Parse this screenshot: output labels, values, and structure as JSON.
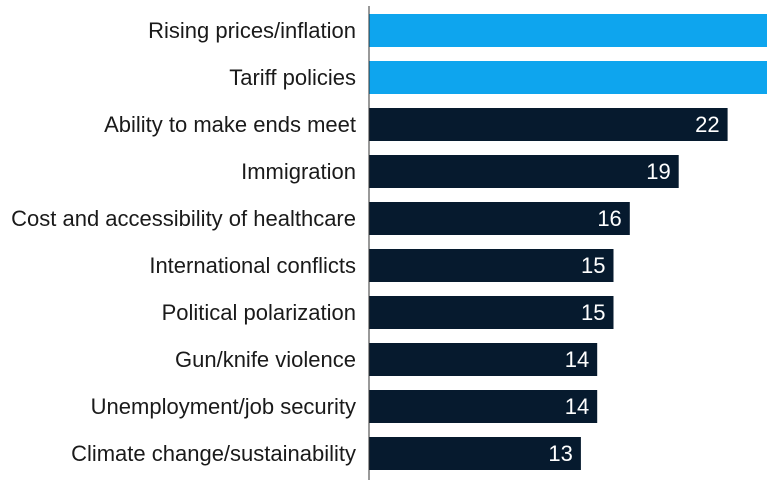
{
  "chart_data": {
    "type": "bar",
    "orientation": "horizontal",
    "categories": [
      "Rising prices/inflation",
      "Tariff policies",
      "Ability to make ends meet",
      "Immigration",
      "Cost and accessibility of healthcare",
      "International conflicts",
      "Political polarization",
      "Gun/knife violence",
      "Unemployment/job security",
      "Climate change/sustainability"
    ],
    "values": [
      null,
      null,
      22,
      19,
      16,
      15,
      15,
      14,
      14,
      13
    ],
    "value_labels": [
      "",
      "",
      "22",
      "19",
      "16",
      "15",
      "15",
      "14",
      "14",
      "13"
    ],
    "highlighted": [
      true,
      true,
      false,
      false,
      false,
      false,
      false,
      false,
      false,
      false
    ],
    "colors": {
      "highlight": "#0ea5ee",
      "default": "#061a2e",
      "axis": "#333333"
    },
    "title": "",
    "xlabel": "",
    "ylabel": "",
    "xlim": [
      0,
      22.5
    ],
    "grid": false,
    "legend": "none"
  }
}
